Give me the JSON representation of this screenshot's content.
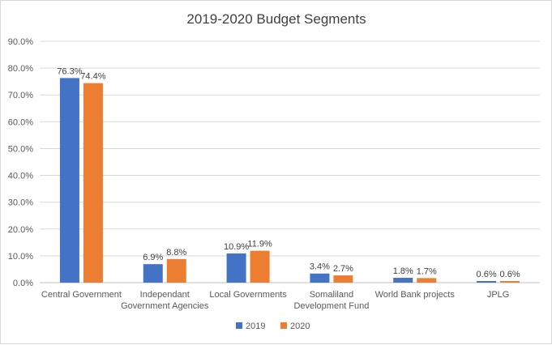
{
  "chart_data": {
    "type": "bar",
    "title": "2019-2020 Budget Segments",
    "categories": [
      [
        "Central Government"
      ],
      [
        "Independant",
        "Government Agencies"
      ],
      [
        "Local Governments"
      ],
      [
        "Somaliland",
        "Development Fund"
      ],
      [
        "World Bank projects"
      ],
      [
        "JPLG"
      ]
    ],
    "series": [
      {
        "name": "2019",
        "color": "#4472C4",
        "values": [
          76.3,
          6.9,
          10.9,
          3.4,
          1.8,
          0.6
        ],
        "labels": [
          "76.3%",
          "6.9%",
          "10.9%",
          "3.4%",
          "1.8%",
          "0.6%"
        ]
      },
      {
        "name": "2020",
        "color": "#ED7D31",
        "values": [
          74.4,
          8.8,
          11.9,
          2.7,
          1.7,
          0.6
        ],
        "labels": [
          "74.4%",
          "8.8%",
          "11.9%",
          "2.7%",
          "1.7%",
          "0.6%"
        ]
      }
    ],
    "yticks": [
      "0.0%",
      "10.0%",
      "20.0%",
      "30.0%",
      "40.0%",
      "50.0%",
      "60.0%",
      "70.0%",
      "80.0%",
      "90.0%"
    ],
    "ylim": [
      0,
      90
    ],
    "grid": true,
    "legend": "bottom"
  }
}
